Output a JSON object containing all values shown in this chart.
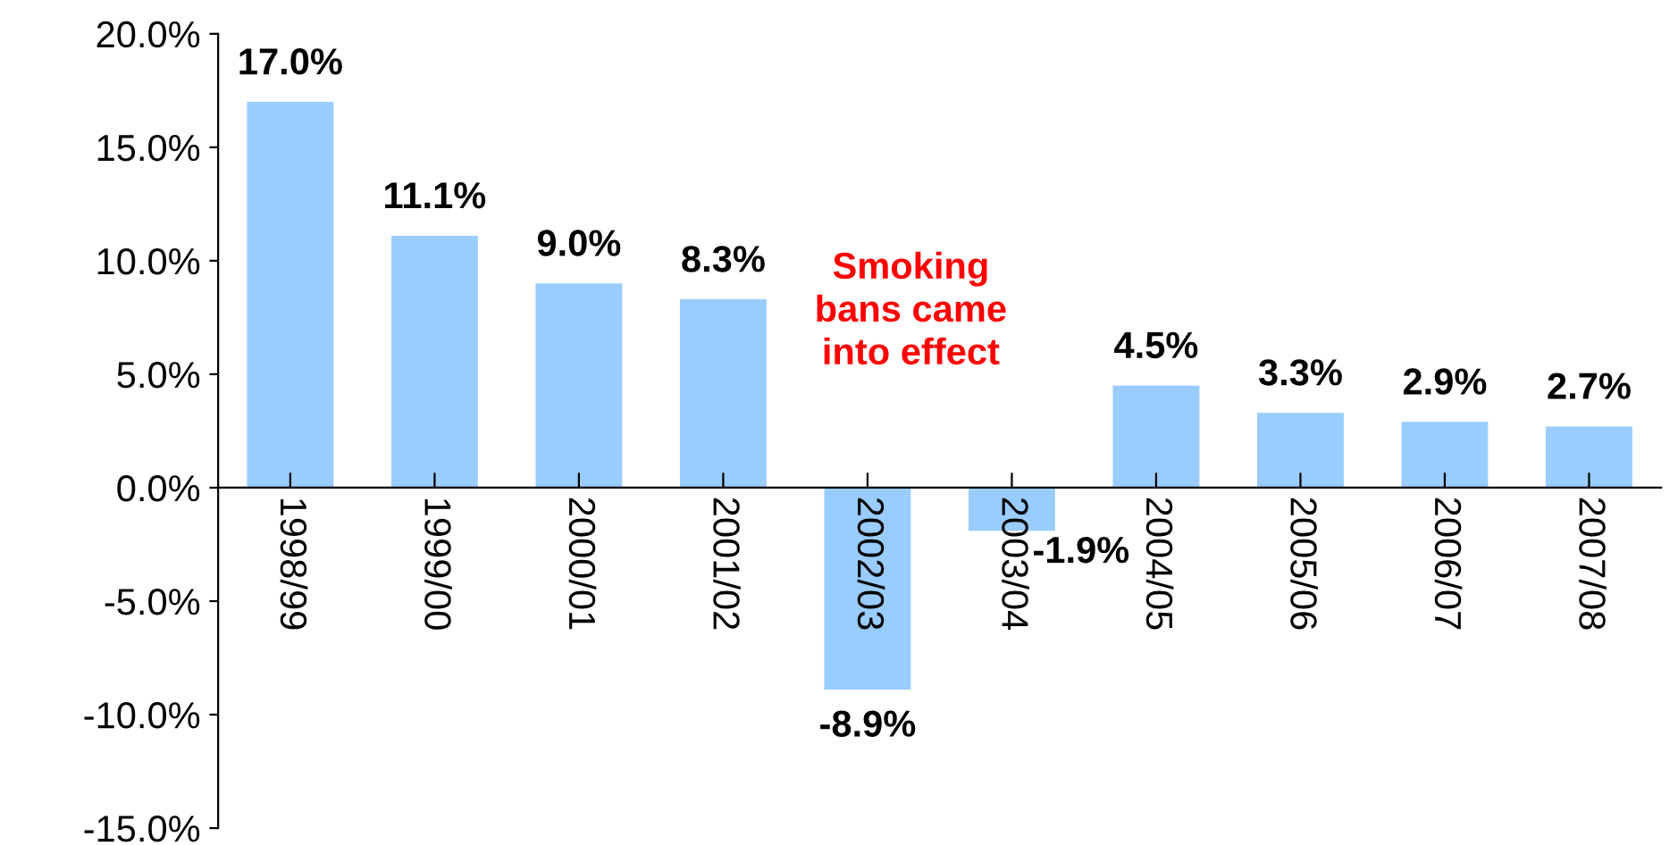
{
  "chart_data": {
    "type": "bar",
    "categories": [
      "1998/99",
      "1999/00",
      "2000/01",
      "2001/02",
      "2002/03",
      "2003/04",
      "2004/05",
      "2005/06",
      "2006/07",
      "2007/08"
    ],
    "values": [
      17.0,
      11.1,
      9.0,
      8.3,
      -8.9,
      -1.9,
      4.5,
      3.3,
      2.9,
      2.7
    ],
    "value_labels": [
      "17.0%",
      "11.1%",
      "9.0%",
      "8.3%",
      "-8.9%",
      "-1.9%",
      "4.5%",
      "3.3%",
      "2.9%",
      "2.7%"
    ],
    "color": "#99ccff",
    "ylim": [
      -15,
      20
    ],
    "yticks": [
      {
        "value": -15,
        "label": "-15.0%"
      },
      {
        "value": -10,
        "label": "-10.0%"
      },
      {
        "value": -5,
        "label": "-5.0%"
      },
      {
        "value": 0,
        "label": "0.0%"
      },
      {
        "value": 5,
        "label": "5.0%"
      },
      {
        "value": 10,
        "label": "10.0%"
      },
      {
        "value": 15,
        "label": "15.0%"
      },
      {
        "value": 20,
        "label": "20.0%"
      }
    ],
    "annotations": [
      "Smoking\nbans came\ninto effect"
    ],
    "grid": false,
    "legend": false
  }
}
